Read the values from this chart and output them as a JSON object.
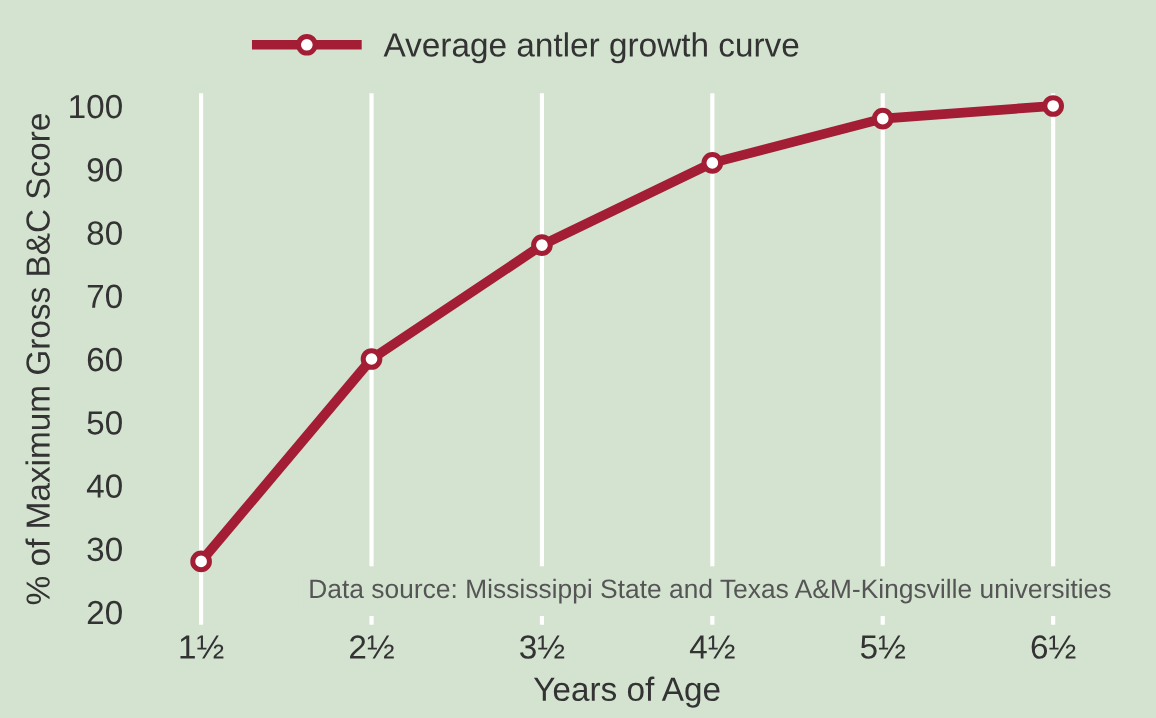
{
  "chart_data": {
    "type": "line",
    "xlabel": "Years of Age",
    "ylabel": "% of Maximum Gross B&C Score",
    "categories": [
      "1½",
      "2½",
      "3½",
      "4½",
      "5½",
      "6½"
    ],
    "series": [
      {
        "name": "Average antler growth curve",
        "color": "#a31d35",
        "values": [
          28,
          60,
          78,
          91,
          98,
          100
        ]
      }
    ],
    "ylim": [
      18,
      102
    ],
    "yticks": [
      20,
      30,
      40,
      50,
      60,
      70,
      80,
      90,
      100
    ],
    "grid": "x",
    "legend": "top",
    "marker": "circle",
    "line_style": "solid",
    "annotations": [
      {
        "text": "Data source: Mississippi State and Texas A&M-Kingsville universities"
      }
    ]
  }
}
